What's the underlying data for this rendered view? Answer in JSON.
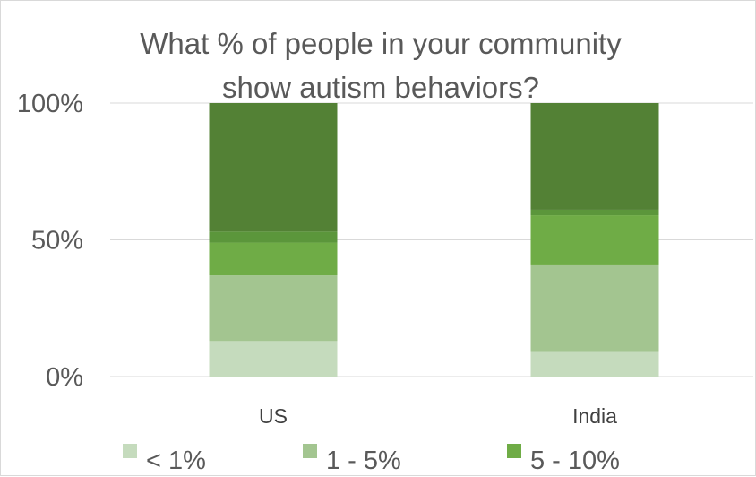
{
  "chart_data": {
    "type": "bar",
    "stacked": true,
    "percent_stacked": true,
    "title_lines": [
      "What % of people in your community",
      "show autism behaviors?"
    ],
    "categories": [
      "US",
      "India"
    ],
    "ylim": [
      0,
      100
    ],
    "yticks": [
      0,
      50,
      100
    ],
    "ytick_labels": [
      "0%",
      "50%",
      "100%"
    ],
    "grid": true,
    "legend_position": "bottom",
    "series": [
      {
        "name": "< 1%",
        "color": "#c5dbbd",
        "values": [
          13,
          9
        ]
      },
      {
        "name": "1 - 5%",
        "color": "#a3c590",
        "values": [
          24,
          32
        ]
      },
      {
        "name": "5 - 10%",
        "color": "#6fac46",
        "values": [
          12,
          18
        ]
      },
      {
        "color": "#5b963b",
        "values": [
          4,
          2
        ]
      },
      {
        "color": "#538135",
        "values": [
          47,
          39
        ]
      }
    ]
  }
}
